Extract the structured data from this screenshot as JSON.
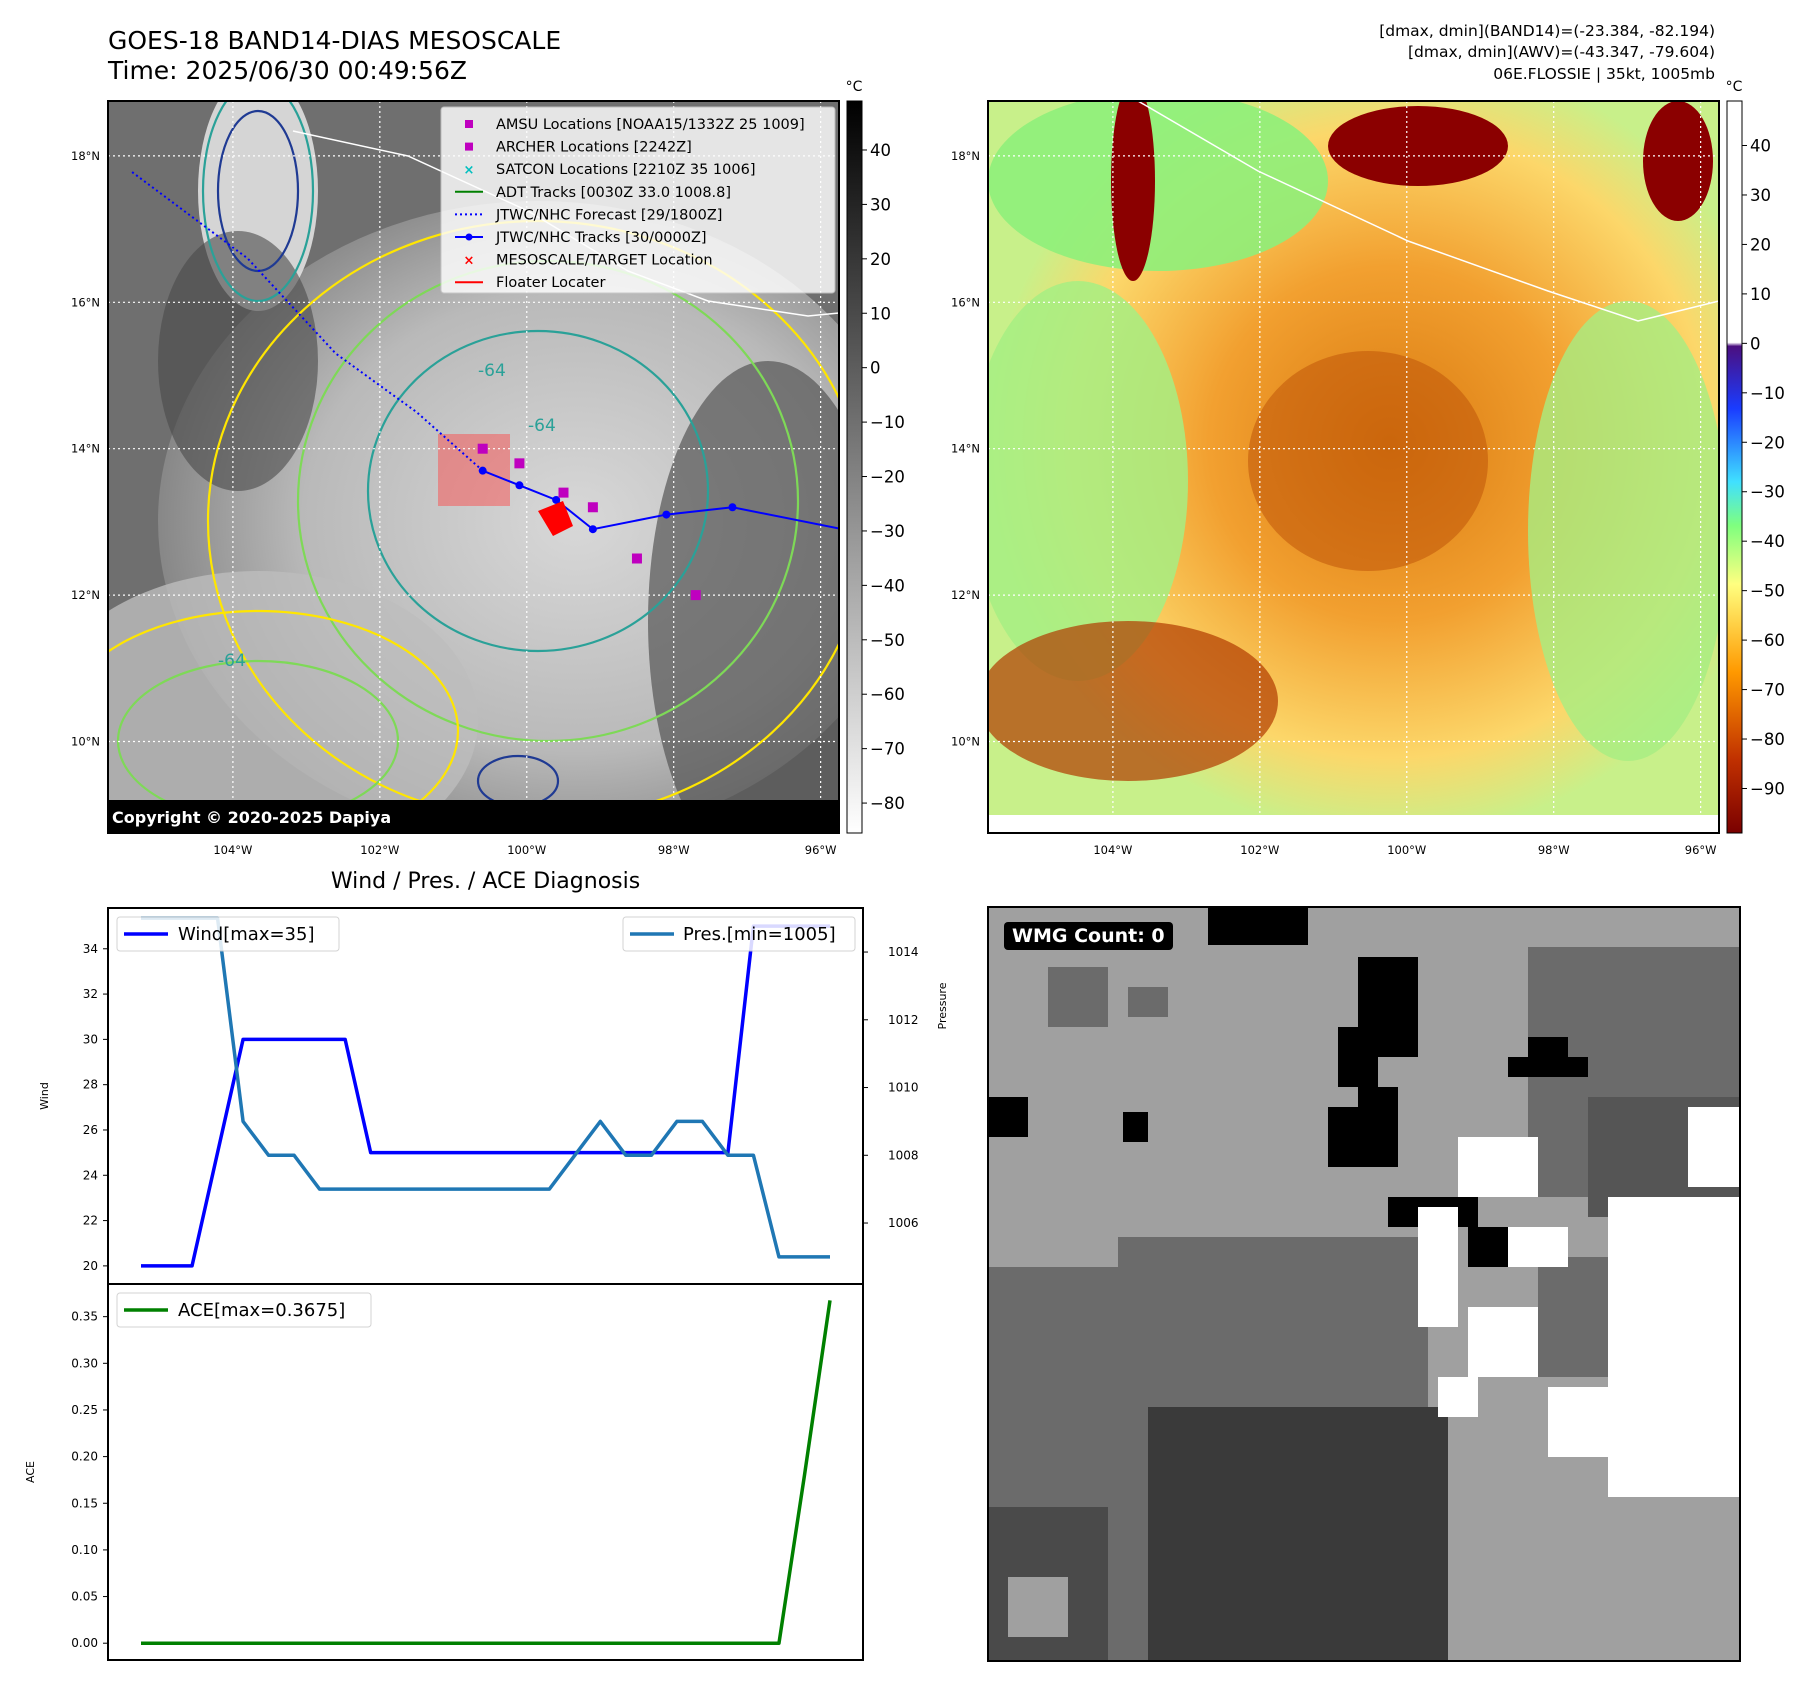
{
  "header": {
    "title_line1": "GOES-18 BAND14-DIAS MESOSCALE",
    "title_line2": "Time: 2025/06/30 00:49:56Z",
    "info_line1": "[dmax, dmin](BAND14)=(-23.384, -82.194)",
    "info_line2": "[dmax, dmin](AWV)=(-43.347, -79.604)",
    "info_line3": "06E.FLOSSIE | 35kt, 1005mb"
  },
  "ir_map": {
    "lat_labels": [
      "18°N",
      "16°N",
      "14°N",
      "12°N",
      "10°N"
    ],
    "lon_labels": [
      "104°W",
      "102°W",
      "100°W",
      "98°W",
      "96°W"
    ],
    "contour_labels": [
      "-64",
      "-64",
      "-64"
    ],
    "copyright": "Copyright © 2020-2025 Dapiya",
    "colorbar_unit": "°C",
    "colorbar_ticks": [
      40,
      30,
      20,
      10,
      0,
      -10,
      -20,
      -30,
      -40,
      -50,
      -60,
      -70,
      -80
    ],
    "colorbar_ticks_text": [
      "40",
      "30",
      "20",
      "10",
      "0",
      "−10",
      "−20",
      "−30",
      "−40",
      "−50",
      "−60",
      "−70",
      "−80"
    ],
    "legend": [
      {
        "label": "AMSU Locations [NOAA15/1332Z 25 1009]",
        "marker": "square",
        "color": "#bf00bf"
      },
      {
        "label": "ARCHER Locations [2242Z]",
        "marker": "square",
        "color": "#bf00bf"
      },
      {
        "label": "SATCON Locations [2210Z 35 1006]",
        "marker": "x",
        "color": "#00bfbf"
      },
      {
        "label": "ADT Tracks [0030Z 33.0 1008.8]",
        "marker": "line",
        "color": "#008000"
      },
      {
        "label": "JTWC/NHC Forecast [29/1800Z]",
        "marker": "dotted",
        "color": "#0000ff"
      },
      {
        "label": "JTWC/NHC Tracks [30/0000Z]",
        "marker": "line-dot",
        "color": "#0000ff"
      },
      {
        "label": "MESOSCALE/TARGET Location",
        "marker": "x",
        "color": "#ff0000"
      },
      {
        "label": "Floater Locater",
        "marker": "line",
        "color": "#ff0000"
      }
    ],
    "jtwc_track": [
      [
        -95.7,
        12.9
      ],
      [
        -97.2,
        13.2
      ],
      [
        -98.1,
        13.1
      ],
      [
        -99.1,
        12.9
      ],
      [
        -99.6,
        13.3
      ],
      [
        -100.1,
        13.5
      ],
      [
        -100.6,
        13.7
      ]
    ],
    "jtwc_forecast": [
      [
        -100.6,
        13.7
      ],
      [
        -101.5,
        14.5
      ],
      [
        -102.6,
        15.3
      ],
      [
        -103.8,
        16.6
      ],
      [
        -105.4,
        17.8
      ]
    ],
    "amsu_points": [
      [
        -99.5,
        13.4
      ],
      [
        -99.1,
        13.2
      ],
      [
        -98.5,
        12.5
      ],
      [
        -97.7,
        12.0
      ],
      [
        -100.6,
        14.0
      ],
      [
        -100.1,
        13.8
      ]
    ]
  },
  "awv_map": {
    "lat_labels": [
      "18°N",
      "16°N",
      "14°N",
      "12°N",
      "10°N"
    ],
    "lon_labels": [
      "104°W",
      "102°W",
      "100°W",
      "98°W",
      "96°W"
    ],
    "colorbar_unit": "°C",
    "colorbar_ticks": [
      40,
      30,
      20,
      10,
      0,
      -10,
      -20,
      -30,
      -40,
      -50,
      -60,
      -70,
      -80,
      -90
    ],
    "colorbar_ticks_text": [
      "40",
      "30",
      "20",
      "10",
      "0",
      "−10",
      "−20",
      "−30",
      "−40",
      "−50",
      "−60",
      "−70",
      "−80",
      "−90"
    ]
  },
  "chart_data": [
    {
      "type": "line",
      "title": "Wind / Pres. / ACE Diagnosis",
      "ylabel": "Wind",
      "y2label": "Pressure",
      "ylim": [
        19.2,
        35.8
      ],
      "y2lim": [
        1004.2,
        1015.3
      ],
      "yticks": [
        20,
        22,
        24,
        26,
        28,
        30,
        32,
        34
      ],
      "y2ticks": [
        1006,
        1008,
        1010,
        1012,
        1014
      ],
      "x": [
        0,
        1,
        2,
        3,
        4,
        5,
        6,
        7,
        8,
        9,
        10,
        11,
        12,
        13,
        14,
        15,
        16,
        17,
        18,
        19,
        20,
        21,
        22,
        23,
        24,
        25,
        26,
        27
      ],
      "series": [
        {
          "name": "Wind[max=35]",
          "axis": "left",
          "color": "#0000ff",
          "values": [
            20,
            20,
            20,
            25,
            30,
            30,
            30,
            30,
            30,
            25,
            25,
            25,
            25,
            25,
            25,
            25,
            25,
            25,
            25,
            25,
            25,
            25,
            25,
            25,
            35,
            35,
            35,
            35
          ]
        },
        {
          "name": "Pres.[min=1005]",
          "axis": "right",
          "color": "#1f77b4",
          "values": [
            1015,
            1015,
            1015,
            1015,
            1009,
            1008,
            1008,
            1007,
            1007,
            1007,
            1007,
            1007,
            1007,
            1007,
            1007,
            1007,
            1007,
            1008,
            1009,
            1008,
            1008,
            1009,
            1009,
            1008,
            1008,
            1005,
            1005,
            1005
          ]
        }
      ]
    },
    {
      "type": "line",
      "ylabel": "ACE",
      "ylim": [
        -0.018,
        0.385
      ],
      "yticks_text": [
        "0.00",
        "0.05",
        "0.10",
        "0.15",
        "0.20",
        "0.25",
        "0.30",
        "0.35"
      ],
      "yticks": [
        0,
        0.05,
        0.1,
        0.15,
        0.2,
        0.25,
        0.3,
        0.35
      ],
      "x": [
        0,
        1,
        2,
        3,
        4,
        5,
        6,
        7,
        8,
        9,
        10,
        11,
        12,
        13,
        14,
        15,
        16,
        17,
        18,
        19,
        20,
        21,
        22,
        23,
        24,
        25,
        26,
        27
      ],
      "series": [
        {
          "name": "ACE[max=0.3675]",
          "color": "#008000",
          "values": [
            0,
            0,
            0,
            0,
            0,
            0,
            0,
            0,
            0,
            0,
            0,
            0,
            0,
            0,
            0,
            0,
            0,
            0,
            0,
            0,
            0,
            0,
            0,
            0,
            0,
            0.0,
            0.18,
            0.3675
          ]
        }
      ]
    }
  ],
  "wmg": {
    "label": "WMG Count: 0"
  }
}
